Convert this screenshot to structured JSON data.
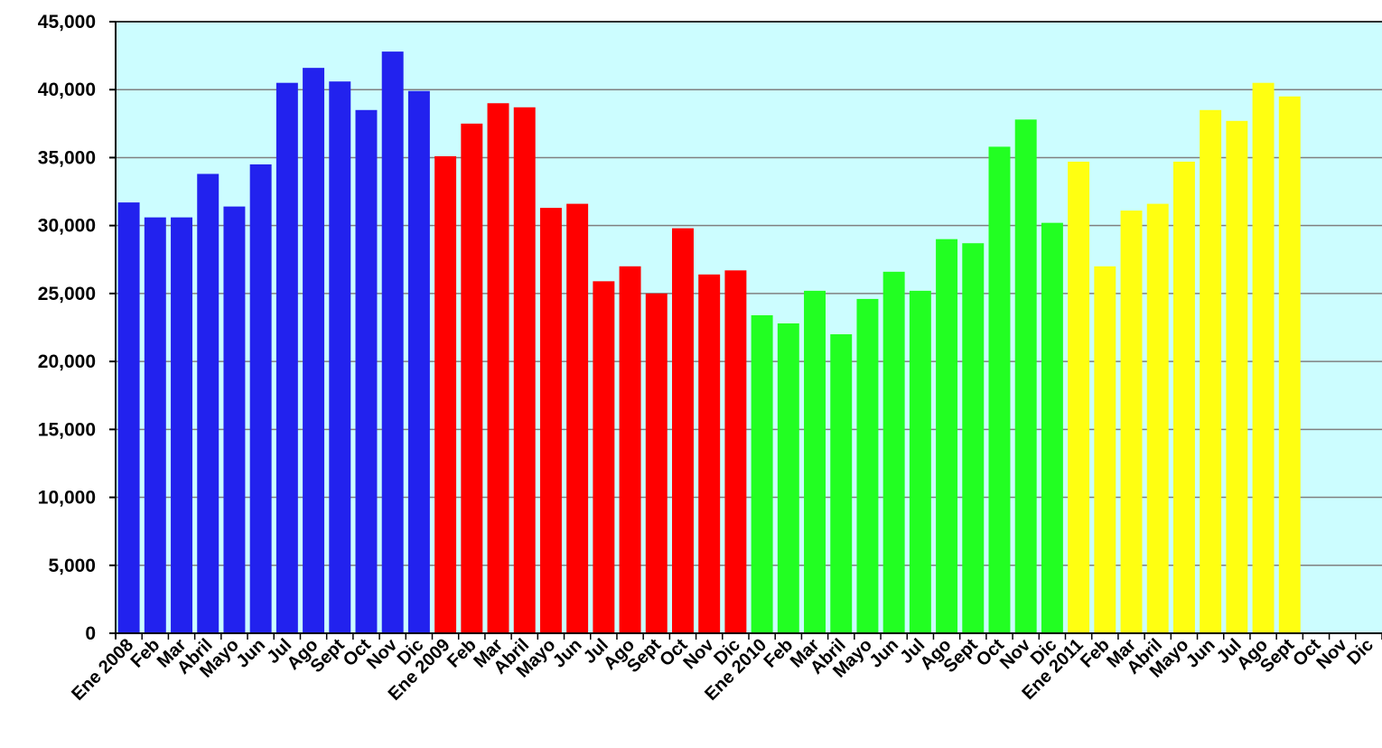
{
  "chart_data": {
    "type": "bar",
    "title": "",
    "xlabel": "",
    "ylabel": "",
    "ylim": [
      0,
      45000
    ],
    "yticks": [
      0,
      5000,
      10000,
      15000,
      20000,
      25000,
      30000,
      35000,
      40000,
      45000
    ],
    "ytick_labels": [
      "0",
      "5,000",
      "10,000",
      "15,000",
      "20,000",
      "25,000",
      "30,000",
      "35,000",
      "40,000",
      "45,000"
    ],
    "grid": true,
    "legend": "none",
    "background_color": "#ccfdff",
    "categories": [
      "Ene 2008",
      "Feb",
      "Mar",
      "Abril",
      "Mayo",
      "Jun",
      "Jul",
      "Ago",
      "Sept",
      "Oct",
      "Nov",
      "Dic",
      "Ene 2009",
      "Feb",
      "Mar",
      "Abril",
      "Mayo",
      "Jun",
      "Jul",
      "Ago",
      "Sept",
      "Oct",
      "Nov",
      "Dic",
      "Ene 2010",
      "Feb",
      "Mar",
      "Abril",
      "Mayo",
      "Jun",
      "Jul",
      "Ago",
      "Sept",
      "Oct",
      "Nov",
      "Dic",
      "Ene 2011",
      "Feb",
      "Mar",
      "Abril",
      "Mayo",
      "Jun",
      "Jul",
      "Ago",
      "Sept",
      "Oct",
      "Nov",
      "Dic"
    ],
    "series": [
      {
        "color": "#2222ee",
        "values": [
          31700,
          30600,
          30600,
          33800,
          31400,
          34500,
          40500,
          41600,
          40600,
          38500,
          42800,
          39900,
          null,
          null,
          null,
          null,
          null,
          null,
          null,
          null,
          null,
          null,
          null,
          null,
          null,
          null,
          null,
          null,
          null,
          null,
          null,
          null,
          null,
          null,
          null,
          null,
          null,
          null,
          null,
          null,
          null,
          null,
          null,
          null,
          null,
          null,
          null,
          null
        ]
      },
      {
        "color": "#ff0000",
        "values": [
          null,
          null,
          null,
          null,
          null,
          null,
          null,
          null,
          null,
          null,
          null,
          null,
          35100,
          37500,
          39000,
          38700,
          31300,
          31600,
          25900,
          27000,
          25000,
          29800,
          26400,
          26700,
          null,
          null,
          null,
          null,
          null,
          null,
          null,
          null,
          null,
          null,
          null,
          null,
          null,
          null,
          null,
          null,
          null,
          null,
          null,
          null,
          null,
          null,
          null,
          null
        ]
      },
      {
        "color": "#22ff22",
        "values": [
          null,
          null,
          null,
          null,
          null,
          null,
          null,
          null,
          null,
          null,
          null,
          null,
          null,
          null,
          null,
          null,
          null,
          null,
          null,
          null,
          null,
          null,
          null,
          null,
          23400,
          22800,
          25200,
          22000,
          24600,
          26600,
          25200,
          29000,
          28700,
          35800,
          37800,
          30200,
          null,
          null,
          null,
          null,
          null,
          null,
          null,
          null,
          null,
          null,
          null,
          null
        ]
      },
      {
        "color": "#ffff11",
        "values": [
          null,
          null,
          null,
          null,
          null,
          null,
          null,
          null,
          null,
          null,
          null,
          null,
          null,
          null,
          null,
          null,
          null,
          null,
          null,
          null,
          null,
          null,
          null,
          null,
          null,
          null,
          null,
          null,
          null,
          null,
          null,
          null,
          null,
          null,
          null,
          null,
          34700,
          27000,
          31100,
          31600,
          34700,
          38500,
          37700,
          40500,
          39500,
          null,
          null,
          null
        ]
      }
    ]
  }
}
